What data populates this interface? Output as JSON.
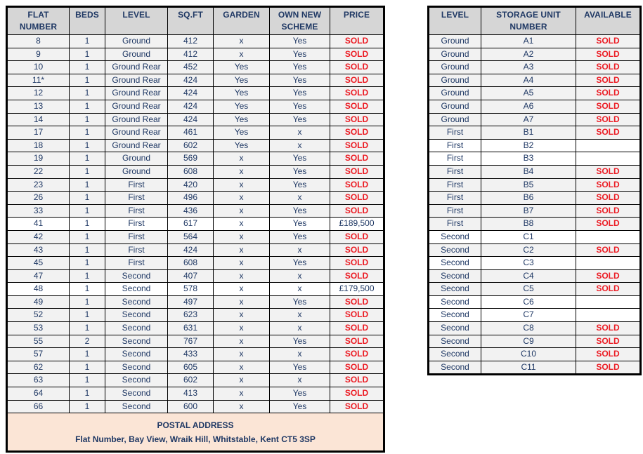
{
  "colors": {
    "header_bg": "#d6d6d6",
    "sold_row_bg": "#f2f2f2",
    "available_row_bg": "#ffffff",
    "footer_bg": "#fbe5d6",
    "text_navy": "#1f3864",
    "sold_red": "#ec1c24",
    "border": "#000000"
  },
  "flats_table": {
    "headers": [
      "FLAT NUMBER",
      "BEDS",
      "LEVEL",
      "SQ.FT",
      "GARDEN",
      "OWN NEW SCHEME",
      "PRICE"
    ],
    "rows": [
      {
        "flat": "8",
        "beds": "1",
        "level": "Ground",
        "sqft": "412",
        "garden": "x",
        "scheme": "Yes",
        "price": "SOLD",
        "available": false
      },
      {
        "flat": "9",
        "beds": "1",
        "level": "Ground",
        "sqft": "412",
        "garden": "x",
        "scheme": "Yes",
        "price": "SOLD",
        "available": false
      },
      {
        "flat": "10",
        "beds": "1",
        "level": "Ground Rear",
        "sqft": "452",
        "garden": "Yes",
        "scheme": "Yes",
        "price": "SOLD",
        "available": false
      },
      {
        "flat": "11*",
        "beds": "1",
        "level": "Ground Rear",
        "sqft": "424",
        "garden": "Yes",
        "scheme": "Yes",
        "price": "SOLD",
        "available": false
      },
      {
        "flat": "12",
        "beds": "1",
        "level": "Ground Rear",
        "sqft": "424",
        "garden": "Yes",
        "scheme": "Yes",
        "price": "SOLD",
        "available": false
      },
      {
        "flat": "13",
        "beds": "1",
        "level": "Ground Rear",
        "sqft": "424",
        "garden": "Yes",
        "scheme": "Yes",
        "price": "SOLD",
        "available": false
      },
      {
        "flat": "14",
        "beds": "1",
        "level": "Ground Rear",
        "sqft": "424",
        "garden": "Yes",
        "scheme": "Yes",
        "price": "SOLD",
        "available": false
      },
      {
        "flat": "17",
        "beds": "1",
        "level": "Ground Rear",
        "sqft": "461",
        "garden": "Yes",
        "scheme": "x",
        "price": "SOLD",
        "available": false
      },
      {
        "flat": "18",
        "beds": "1",
        "level": "Ground Rear",
        "sqft": "602",
        "garden": "Yes",
        "scheme": "x",
        "price": "SOLD",
        "available": false
      },
      {
        "flat": "19",
        "beds": "1",
        "level": "Ground",
        "sqft": "569",
        "garden": "x",
        "scheme": "Yes",
        "price": "SOLD",
        "available": false
      },
      {
        "flat": "22",
        "beds": "1",
        "level": "Ground",
        "sqft": "608",
        "garden": "x",
        "scheme": "Yes",
        "price": "SOLD",
        "available": false
      },
      {
        "flat": "23",
        "beds": "1",
        "level": "First",
        "sqft": "420",
        "garden": "x",
        "scheme": "Yes",
        "price": "SOLD",
        "available": false
      },
      {
        "flat": "26",
        "beds": "1",
        "level": "First",
        "sqft": "496",
        "garden": "x",
        "scheme": "x",
        "price": "SOLD",
        "available": false
      },
      {
        "flat": "33",
        "beds": "1",
        "level": "First",
        "sqft": "436",
        "garden": "x",
        "scheme": "Yes",
        "price": "SOLD",
        "available": false
      },
      {
        "flat": "41",
        "beds": "1",
        "level": "First",
        "sqft": "617",
        "garden": "x",
        "scheme": "Yes",
        "price": "£189,500",
        "available": true
      },
      {
        "flat": "42",
        "beds": "1",
        "level": "First",
        "sqft": "564",
        "garden": "x",
        "scheme": "Yes",
        "price": "SOLD",
        "available": false
      },
      {
        "flat": "43",
        "beds": "1",
        "level": "First",
        "sqft": "424",
        "garden": "x",
        "scheme": "x",
        "price": "SOLD",
        "available": false
      },
      {
        "flat": "45",
        "beds": "1",
        "level": "First",
        "sqft": "608",
        "garden": "x",
        "scheme": "Yes",
        "price": "SOLD",
        "available": false
      },
      {
        "flat": "47",
        "beds": "1",
        "level": "Second",
        "sqft": "407",
        "garden": "x",
        "scheme": "x",
        "price": "SOLD",
        "available": false
      },
      {
        "flat": "48",
        "beds": "1",
        "level": "Second",
        "sqft": "578",
        "garden": "x",
        "scheme": "x",
        "price": "£179,500",
        "available": true
      },
      {
        "flat": "49",
        "beds": "1",
        "level": "Second",
        "sqft": "497",
        "garden": "x",
        "scheme": "Yes",
        "price": "SOLD",
        "available": false
      },
      {
        "flat": "52",
        "beds": "1",
        "level": "Second",
        "sqft": "623",
        "garden": "x",
        "scheme": "x",
        "price": "SOLD",
        "available": false
      },
      {
        "flat": "53",
        "beds": "1",
        "level": "Second",
        "sqft": "631",
        "garden": "x",
        "scheme": "x",
        "price": "SOLD",
        "available": false
      },
      {
        "flat": "55",
        "beds": "2",
        "level": "Second",
        "sqft": "767",
        "garden": "x",
        "scheme": "Yes",
        "price": "SOLD",
        "available": false
      },
      {
        "flat": "57",
        "beds": "1",
        "level": "Second",
        "sqft": "433",
        "garden": "x",
        "scheme": "x",
        "price": "SOLD",
        "available": false
      },
      {
        "flat": "62",
        "beds": "1",
        "level": "Second",
        "sqft": "605",
        "garden": "x",
        "scheme": "Yes",
        "price": "SOLD",
        "available": false
      },
      {
        "flat": "63",
        "beds": "1",
        "level": "Second",
        "sqft": "602",
        "garden": "x",
        "scheme": "x",
        "price": "SOLD",
        "available": false
      },
      {
        "flat": "64",
        "beds": "1",
        "level": "Second",
        "sqft": "413",
        "garden": "x",
        "scheme": "Yes",
        "price": "SOLD",
        "available": false
      },
      {
        "flat": "66",
        "beds": "1",
        "level": "Second",
        "sqft": "600",
        "garden": "x",
        "scheme": "Yes",
        "price": "SOLD",
        "available": false
      }
    ],
    "footer": {
      "title": "POSTAL ADDRESS",
      "address": "Flat Number, Bay View, Wraik Hill, Whitstable, Kent CT5 3SP"
    }
  },
  "storage_table": {
    "headers": [
      "LEVEL",
      "STORAGE UNIT NUMBER",
      "AVAILABLE"
    ],
    "rows": [
      {
        "level": "Ground",
        "unit": "A1",
        "status": "SOLD",
        "available": false
      },
      {
        "level": "Ground",
        "unit": "A2",
        "status": "SOLD",
        "available": false
      },
      {
        "level": "Ground",
        "unit": "A3",
        "status": "SOLD",
        "available": false
      },
      {
        "level": "Ground",
        "unit": "A4",
        "status": "SOLD",
        "available": false
      },
      {
        "level": "Ground",
        "unit": "A5",
        "status": "SOLD",
        "available": false
      },
      {
        "level": "Ground",
        "unit": "A6",
        "status": "SOLD",
        "available": false
      },
      {
        "level": "Ground",
        "unit": "A7",
        "status": "SOLD",
        "available": false
      },
      {
        "level": "First",
        "unit": "B1",
        "status": "SOLD",
        "available": false
      },
      {
        "level": "First",
        "unit": "B2",
        "status": "",
        "available": true
      },
      {
        "level": "First",
        "unit": "B3",
        "status": "",
        "available": true
      },
      {
        "level": "First",
        "unit": "B4",
        "status": "SOLD",
        "available": false
      },
      {
        "level": "First",
        "unit": "B5",
        "status": "SOLD",
        "available": false
      },
      {
        "level": "First",
        "unit": "B6",
        "status": "SOLD",
        "available": false
      },
      {
        "level": "First",
        "unit": "B7",
        "status": "SOLD",
        "available": false
      },
      {
        "level": "First",
        "unit": "B8",
        "status": "SOLD",
        "available": false
      },
      {
        "level": "Second",
        "unit": "C1",
        "status": "",
        "available": true
      },
      {
        "level": "Second",
        "unit": "C2",
        "status": "SOLD",
        "available": false
      },
      {
        "level": "Second",
        "unit": "C3",
        "status": "",
        "available": true
      },
      {
        "level": "Second",
        "unit": "C4",
        "status": "SOLD",
        "available": false
      },
      {
        "level": "Second",
        "unit": "C5",
        "status": "SOLD",
        "available": false
      },
      {
        "level": "Second",
        "unit": "C6",
        "status": "",
        "available": true
      },
      {
        "level": "Second",
        "unit": "C7",
        "status": "",
        "available": true
      },
      {
        "level": "Second",
        "unit": "C8",
        "status": "SOLD",
        "available": false
      },
      {
        "level": "Second",
        "unit": "C9",
        "status": "SOLD",
        "available": false
      },
      {
        "level": "Second",
        "unit": "C10",
        "status": "SOLD",
        "available": false
      },
      {
        "level": "Second",
        "unit": "C11",
        "status": "SOLD",
        "available": false
      }
    ]
  }
}
